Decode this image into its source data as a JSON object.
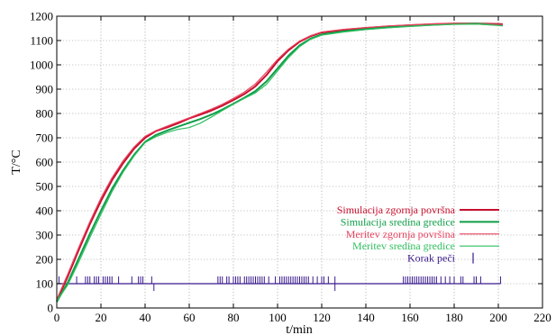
{
  "chart_data": {
    "type": "line",
    "title": "",
    "xlabel": "t/min",
    "ylabel": "T/°C",
    "xlim": [
      0,
      220
    ],
    "ylim": [
      0,
      1200
    ],
    "xticks": [
      0,
      20,
      40,
      60,
      80,
      100,
      120,
      140,
      160,
      180,
      200,
      220
    ],
    "yticks": [
      0,
      100,
      200,
      300,
      400,
      500,
      600,
      700,
      800,
      900,
      1000,
      1100,
      1200
    ],
    "grid": true,
    "legend_position": "bottom-right",
    "series": [
      {
        "name": "Simulacija zgornja površna",
        "color": "#c8102e",
        "width": 2.0,
        "x": [
          0,
          5,
          10,
          15,
          20,
          25,
          30,
          35,
          40,
          45,
          50,
          55,
          60,
          65,
          70,
          75,
          80,
          85,
          90,
          95,
          100,
          105,
          110,
          115,
          120,
          130,
          140,
          150,
          160,
          170,
          180,
          190,
          200,
          202
        ],
        "y": [
          30,
          130,
          240,
          345,
          440,
          525,
          595,
          655,
          700,
          728,
          743,
          760,
          780,
          795,
          812,
          832,
          855,
          880,
          912,
          958,
          1015,
          1060,
          1095,
          1118,
          1133,
          1144,
          1152,
          1158,
          1163,
          1167,
          1170,
          1170,
          1168,
          1167
        ]
      },
      {
        "name": "Simulacija sredina gredice",
        "color": "#0f9e48",
        "width": 2.0,
        "x": [
          0,
          5,
          10,
          15,
          20,
          25,
          30,
          35,
          40,
          45,
          50,
          55,
          60,
          65,
          70,
          75,
          80,
          85,
          90,
          95,
          100,
          105,
          110,
          115,
          120,
          130,
          140,
          150,
          160,
          170,
          180,
          190,
          200,
          202
        ],
        "y": [
          25,
          105,
          205,
          305,
          400,
          490,
          565,
          630,
          683,
          712,
          730,
          746,
          762,
          777,
          795,
          816,
          840,
          865,
          892,
          932,
          985,
          1038,
          1080,
          1108,
          1125,
          1138,
          1147,
          1154,
          1160,
          1165,
          1168,
          1169,
          1165,
          1163
        ]
      },
      {
        "name": "Meritev zgornja površina",
        "color": "#e8425e",
        "width": 1.2,
        "x": [
          0,
          5,
          10,
          15,
          20,
          25,
          30,
          35,
          40,
          45,
          50,
          55,
          60,
          65,
          70,
          75,
          80,
          85,
          90,
          95,
          100,
          105,
          110,
          115,
          120,
          130,
          140,
          150,
          160,
          170,
          180,
          190,
          200,
          202
        ],
        "y": [
          35,
          140,
          250,
          355,
          452,
          535,
          605,
          662,
          706,
          730,
          748,
          765,
          782,
          800,
          818,
          838,
          862,
          888,
          922,
          970,
          1022,
          1065,
          1098,
          1120,
          1135,
          1146,
          1153,
          1160,
          1164,
          1168,
          1170,
          1168,
          1166,
          1165
        ]
      },
      {
        "name": "Meritev sredina gredice",
        "color": "#2fbf5f",
        "width": 1.2,
        "x": [
          0,
          5,
          10,
          15,
          20,
          25,
          30,
          35,
          40,
          45,
          50,
          55,
          60,
          65,
          70,
          75,
          80,
          85,
          90,
          95,
          100,
          105,
          110,
          115,
          120,
          130,
          140,
          150,
          160,
          170,
          180,
          190,
          200,
          202
        ],
        "y": [
          28,
          95,
          190,
          290,
          385,
          478,
          558,
          625,
          680,
          705,
          722,
          735,
          742,
          760,
          785,
          812,
          838,
          862,
          885,
          920,
          975,
          1030,
          1075,
          1105,
          1122,
          1135,
          1145,
          1152,
          1158,
          1163,
          1167,
          1168,
          1162,
          1160
        ]
      }
    ],
    "step_series": {
      "name": "Korak peči",
      "color": "#3a1a8c",
      "baseline": 100,
      "start": 0,
      "end": 201,
      "up_ticks": [
        1,
        9,
        13,
        14,
        15,
        17,
        18,
        19,
        21,
        22,
        23,
        24,
        25,
        28,
        34,
        37,
        38,
        39,
        43,
        73,
        74,
        75,
        77,
        78,
        80,
        81,
        82,
        83,
        85,
        86,
        87,
        88,
        89,
        90,
        91,
        92,
        93,
        94,
        96,
        99,
        101,
        102,
        103,
        104,
        105,
        106,
        107,
        108,
        109,
        110,
        111,
        112,
        113,
        114,
        116,
        118,
        120,
        121,
        123,
        126,
        157,
        158,
        159,
        160,
        161,
        162,
        163,
        164,
        165,
        166,
        167,
        168,
        169,
        170,
        171,
        172,
        174,
        176,
        178,
        180,
        183,
        184,
        189,
        190,
        192,
        201
      ],
      "down_ticks": [
        44,
        126
      ],
      "tick_height": 30
    }
  }
}
